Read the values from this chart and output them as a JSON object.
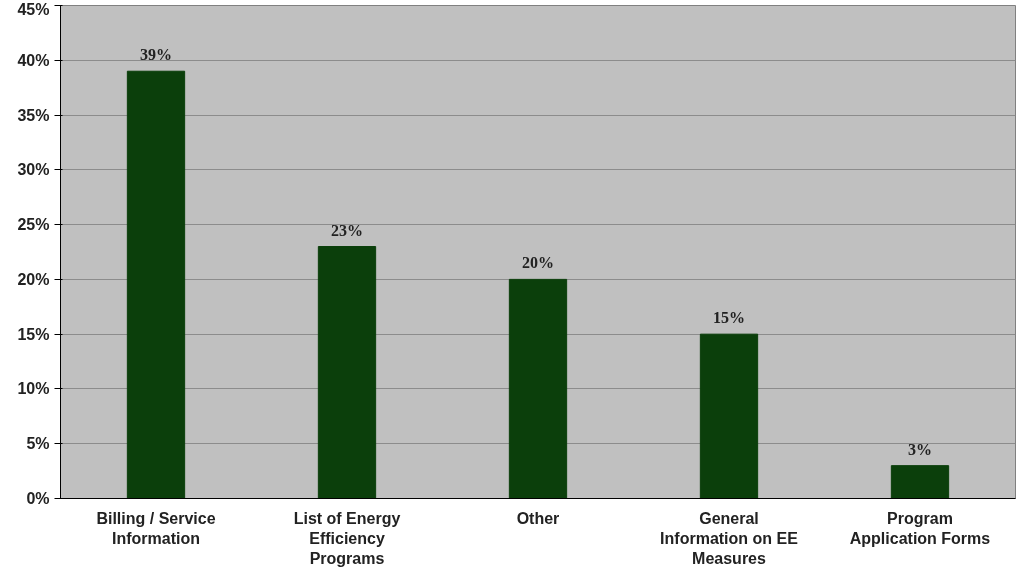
{
  "chart_data": {
    "type": "bar",
    "categories": [
      "Billing / Service\nInformation",
      "List of Energy\nEfficiency\nPrograms",
      "Other",
      "General\nInformation on EE\nMeasures",
      "Program\nApplication Forms"
    ],
    "values": [
      39,
      23,
      20,
      15,
      3
    ],
    "value_labels": [
      "39%",
      "23%",
      "20%",
      "15%",
      "3%"
    ],
    "color": "#0b3f0b",
    "ylim": [
      0,
      45
    ],
    "yticks": [
      {
        "value": 0,
        "label": "0%"
      },
      {
        "value": 5,
        "label": "5%"
      },
      {
        "value": 10,
        "label": "10%"
      },
      {
        "value": 15,
        "label": "15%"
      },
      {
        "value": 20,
        "label": "20%"
      },
      {
        "value": 25,
        "label": "25%"
      },
      {
        "value": 30,
        "label": "30%"
      },
      {
        "value": 35,
        "label": "35%"
      },
      {
        "value": 40,
        "label": "40%"
      },
      {
        "value": 45,
        "label": "45%"
      }
    ],
    "grid": "y"
  }
}
